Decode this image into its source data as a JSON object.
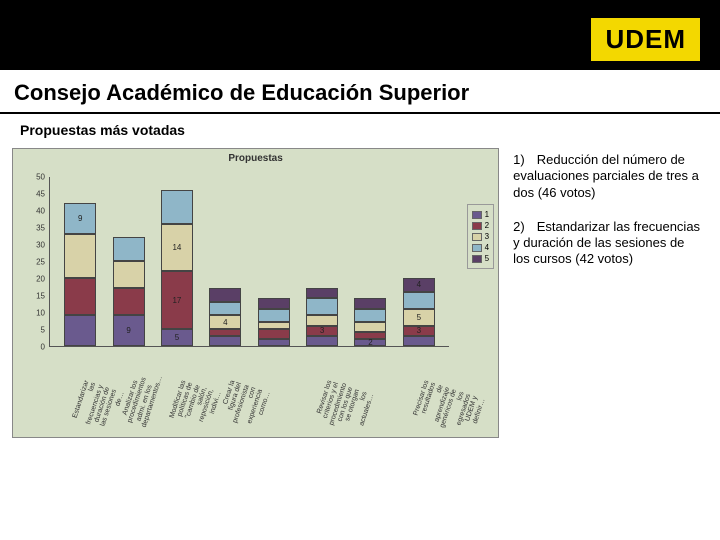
{
  "header": {
    "brand": "UDEM"
  },
  "title": "Consejo Académico de Educación Superior",
  "subtitle": "Propuestas  más votadas",
  "right": {
    "item1_num": "1)",
    "item1_text": "Reducción del número de evaluaciones parciales de tres a dos (46 votos)",
    "item2_num": "2)",
    "item2_text": "Estandarizar las frecuencias y duración de las sesiones de los cursos (42 votos)"
  },
  "chart": {
    "type": "bar-stacked",
    "title": "Propuestas",
    "background_color": "#d6dfc7",
    "ylim": [
      0,
      50
    ],
    "ytick_step": 5,
    "series_colors": {
      "1": "#6a5a8e",
      "2": "#8a3b4a",
      "3": "#d8d2a8",
      "4": "#8fb6c8",
      "5": "#5a3f66"
    },
    "legend": [
      "1",
      "2",
      "3",
      "4",
      "5"
    ],
    "categories": [
      "Estandarizar las frecuencias y duración de las sesiones de…",
      "Analizar los procedimientos admi. en los departamentos…",
      "Modificar las políticas de \"cambio de salón, reposición, indivi…",
      "Crear la figura del profesionista con experiencia como…",
      "",
      "Revisar los criterios y el procedimiento con los que se otorgan los actuales…",
      "",
      "Precisar los resultados de aprendizaje genéricos de los egresados UDEM y definir…"
    ],
    "stacks": [
      [
        {
          "s": "1",
          "v": 9
        },
        {
          "s": "2",
          "v": 11
        },
        {
          "s": "3",
          "v": 13
        },
        {
          "s": "4",
          "v": 9,
          "label": "9"
        }
      ],
      [
        {
          "s": "1",
          "v": 9,
          "label": "9"
        },
        {
          "s": "2",
          "v": 8
        },
        {
          "s": "3",
          "v": 8
        },
        {
          "s": "4",
          "v": 7
        }
      ],
      [
        {
          "s": "1",
          "v": 5,
          "label": "5"
        },
        {
          "s": "2",
          "v": 17,
          "label": "17"
        },
        {
          "s": "3",
          "v": 14,
          "label": "14"
        },
        {
          "s": "4",
          "v": 10
        }
      ],
      [
        {
          "s": "1",
          "v": 3
        },
        {
          "s": "2",
          "v": 2
        },
        {
          "s": "3",
          "v": 4,
          "label": "4"
        },
        {
          "s": "4",
          "v": 4
        },
        {
          "s": "5",
          "v": 4
        }
      ],
      [
        {
          "s": "1",
          "v": 2
        },
        {
          "s": "2",
          "v": 3
        },
        {
          "s": "3",
          "v": 2
        },
        {
          "s": "4",
          "v": 4
        },
        {
          "s": "5",
          "v": 3
        }
      ],
      [
        {
          "s": "1",
          "v": 3
        },
        {
          "s": "2",
          "v": 3,
          "label": "3"
        },
        {
          "s": "3",
          "v": 3
        },
        {
          "s": "4",
          "v": 5
        },
        {
          "s": "5",
          "v": 3
        }
      ],
      [
        {
          "s": "1",
          "v": 2,
          "label": "2"
        },
        {
          "s": "2",
          "v": 2
        },
        {
          "s": "3",
          "v": 3
        },
        {
          "s": "4",
          "v": 4
        },
        {
          "s": "5",
          "v": 3
        }
      ],
      [
        {
          "s": "1",
          "v": 3
        },
        {
          "s": "2",
          "v": 3,
          "label": "3"
        },
        {
          "s": "3",
          "v": 5,
          "label": "5"
        },
        {
          "s": "4",
          "v": 5
        },
        {
          "s": "5",
          "v": 4,
          "label": "4"
        }
      ]
    ]
  }
}
